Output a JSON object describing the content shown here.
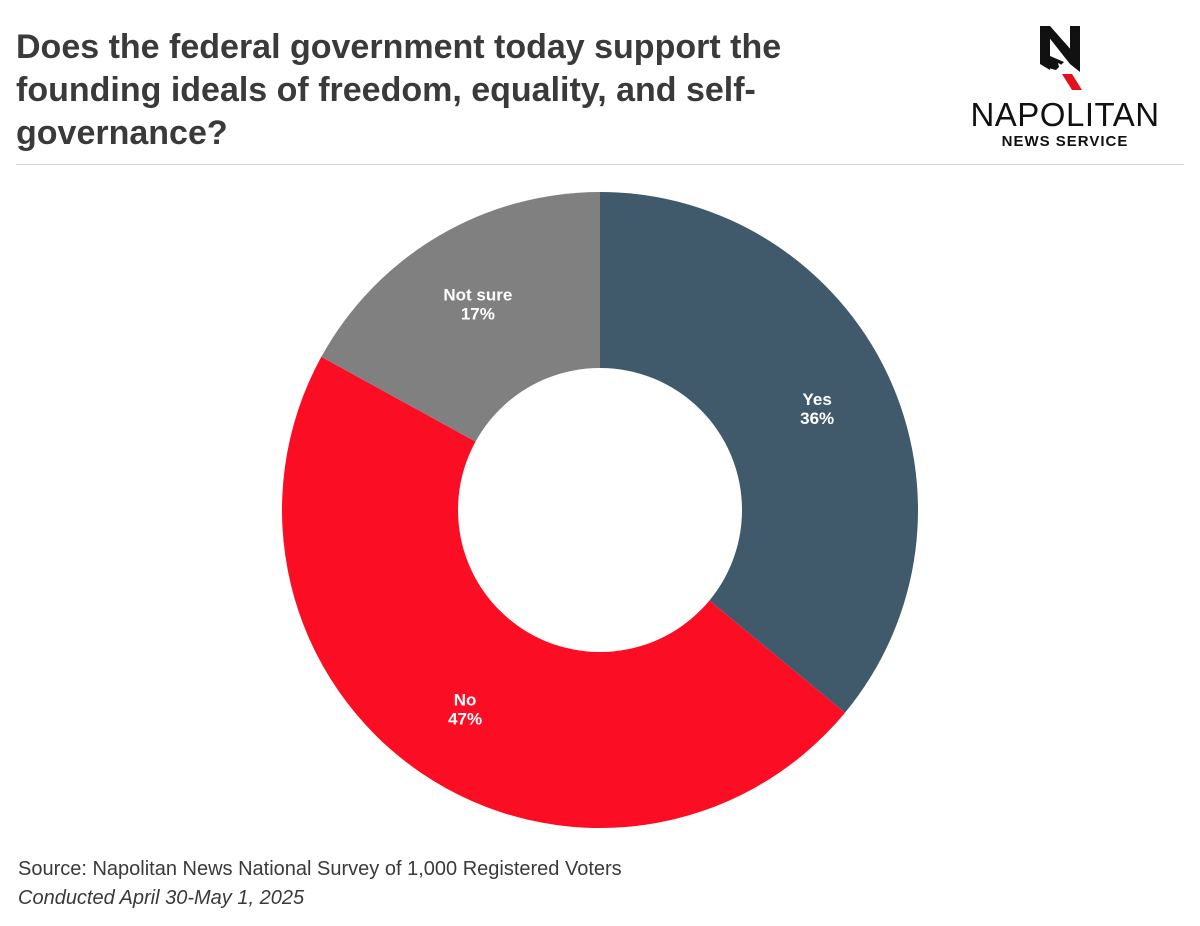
{
  "header": {
    "title": "Does the federal government today support the founding ideals of freedom, equality, and self-governance?"
  },
  "logo": {
    "name": "NAPOLITAN",
    "subtitle": "NEWS SERVICE",
    "mark_icon": "napolitan-n-eagle-icon",
    "mark_color": "#111111",
    "accent_color": "#e3101f"
  },
  "chart_data": {
    "type": "pie",
    "variant": "donut",
    "title": "Does the federal government today support the founding ideals of freedom, equality, and self-governance?",
    "categories": [
      "Yes",
      "No",
      "Not sure"
    ],
    "values": [
      36,
      47,
      17
    ],
    "value_labels": [
      "36%",
      "47%",
      "17%"
    ],
    "colors": [
      "#405a6b",
      "#fb0e24",
      "#808080"
    ],
    "start_angle": "12 o'clock",
    "direction": "clockwise",
    "legend": "none"
  },
  "footer": {
    "source": "Source: Napolitan News National Survey of 1,000 Registered Voters",
    "conducted": "Conducted April 30-May 1, 2025"
  }
}
